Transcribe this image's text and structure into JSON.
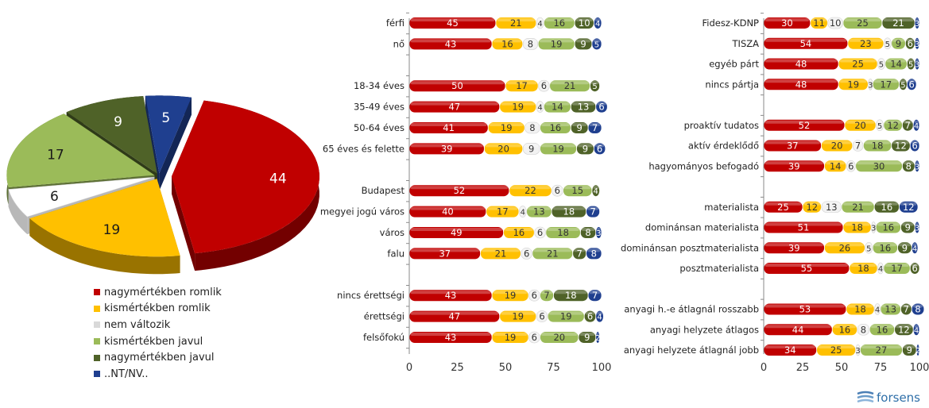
{
  "colors": {
    "nagy_romlik": "#c00000",
    "kis_romlik": "#ffc000",
    "nem_valtozik": "#f2f2f2",
    "kis_javul": "#9bbb59",
    "nagy_javul": "#4f6228",
    "ntnv": "#1f3f8f"
  },
  "legend": [
    {
      "label": "nagymértékben romlik",
      "color": "#c00000"
    },
    {
      "label": "kismértékben romlik",
      "color": "#ffc000"
    },
    {
      "label": "nem változik",
      "color": "#d9d9d9"
    },
    {
      "label": "kismértékben javul",
      "color": "#9bbb59"
    },
    {
      "label": "nagymértékben javul",
      "color": "#4f6228"
    },
    {
      "label": "..NT/NV..",
      "color": "#1f3f8f"
    }
  ],
  "logo_text": "forsens",
  "chart_data": [
    {
      "type": "pie",
      "slices": [
        {
          "name": "nagymértékben romlik",
          "value": 44
        },
        {
          "name": "kismértékben romlik",
          "value": 19
        },
        {
          "name": "nem változik",
          "value": 6
        },
        {
          "name": "kismértékben javul",
          "value": 17
        },
        {
          "name": "nagymértékben javul",
          "value": 9
        },
        {
          "name": "..NT/NV..",
          "value": 5
        }
      ]
    },
    {
      "type": "bar",
      "orientation": "horizontal-stacked",
      "xlim": [
        0,
        100
      ],
      "xticks": [
        0,
        25,
        50,
        75,
        100
      ],
      "series_names": [
        "nagymértékben romlik",
        "kismértékben romlik",
        "nem változik",
        "kismértékben javul",
        "nagymértékben javul",
        "..NT/NV.."
      ],
      "rows": [
        {
          "label": "férfi",
          "values": [
            45,
            21,
            4,
            16,
            10,
            4
          ]
        },
        {
          "label": "nő",
          "values": [
            43,
            16,
            8,
            19,
            9,
            5
          ]
        },
        {
          "label": "",
          "values": []
        },
        {
          "label": "18-34 éves",
          "values": [
            50,
            17,
            6,
            21,
            5,
            0
          ]
        },
        {
          "label": "35-49 éves",
          "values": [
            47,
            19,
            4,
            14,
            13,
            6
          ]
        },
        {
          "label": "50-64 éves",
          "values": [
            41,
            19,
            8,
            16,
            9,
            7
          ]
        },
        {
          "label": "65 éves és felette",
          "values": [
            39,
            20,
            9,
            19,
            9,
            6
          ]
        },
        {
          "label": "",
          "values": []
        },
        {
          "label": "Budapest",
          "values": [
            52,
            22,
            6,
            15,
            4,
            0
          ]
        },
        {
          "label": "megyei jogú város",
          "values": [
            40,
            17,
            4,
            13,
            18,
            7
          ]
        },
        {
          "label": "város",
          "values": [
            49,
            16,
            6,
            18,
            8,
            3
          ]
        },
        {
          "label": "falu",
          "values": [
            37,
            21,
            6,
            21,
            7,
            8
          ]
        },
        {
          "label": "",
          "values": []
        },
        {
          "label": "nincs érettségi",
          "values": [
            43,
            19,
            6,
            7,
            18,
            7
          ]
        },
        {
          "label": "érettségi",
          "values": [
            47,
            19,
            6,
            19,
            6,
            4
          ]
        },
        {
          "label": "felsőfokú",
          "values": [
            43,
            19,
            6,
            20,
            9,
            2
          ]
        }
      ]
    },
    {
      "type": "bar",
      "orientation": "horizontal-stacked",
      "xlim": [
        0,
        100
      ],
      "xticks": [
        0,
        25,
        50,
        75,
        100
      ],
      "series_names": [
        "nagymértékben romlik",
        "kismértékben romlik",
        "nem változik",
        "kismértékben javul",
        "nagymértékben javul",
        "..NT/NV.."
      ],
      "rows": [
        {
          "label": "Fidesz-KDNP",
          "values": [
            30,
            11,
            10,
            25,
            21,
            3
          ]
        },
        {
          "label": "TISZA",
          "values": [
            54,
            23,
            5,
            9,
            6,
            3
          ]
        },
        {
          "label": "egyéb párt",
          "values": [
            48,
            25,
            5,
            14,
            5,
            3
          ]
        },
        {
          "label": "nincs pártja",
          "values": [
            48,
            19,
            3,
            17,
            5,
            6
          ]
        },
        {
          "label": "",
          "values": []
        },
        {
          "label": "proaktív tudatos",
          "values": [
            52,
            20,
            5,
            12,
            7,
            4
          ]
        },
        {
          "label": "aktív érdeklődő",
          "values": [
            37,
            20,
            7,
            18,
            12,
            6
          ]
        },
        {
          "label": "hagyományos befogadó",
          "values": [
            39,
            14,
            6,
            30,
            8,
            3
          ]
        },
        {
          "label": "",
          "values": []
        },
        {
          "label": "materialista",
          "values": [
            25,
            12,
            13,
            21,
            16,
            12
          ]
        },
        {
          "label": "dominánsan materialista",
          "values": [
            51,
            18,
            3,
            16,
            9,
            3
          ]
        },
        {
          "label": "dominánsan posztmaterialista",
          "values": [
            39,
            26,
            5,
            16,
            9,
            4
          ]
        },
        {
          "label": "posztmaterialista",
          "values": [
            55,
            18,
            4,
            17,
            6,
            0
          ]
        },
        {
          "label": "",
          "values": []
        },
        {
          "label": "anyagi h.-e átlagnál rosszabb",
          "values": [
            53,
            18,
            4,
            13,
            7,
            8
          ]
        },
        {
          "label": "anyagi helyzete átlagos",
          "values": [
            44,
            16,
            8,
            16,
            12,
            4
          ]
        },
        {
          "label": "anyagi helyzete átlagnál jobb",
          "values": [
            34,
            25,
            3,
            27,
            9,
            2
          ]
        }
      ]
    }
  ]
}
